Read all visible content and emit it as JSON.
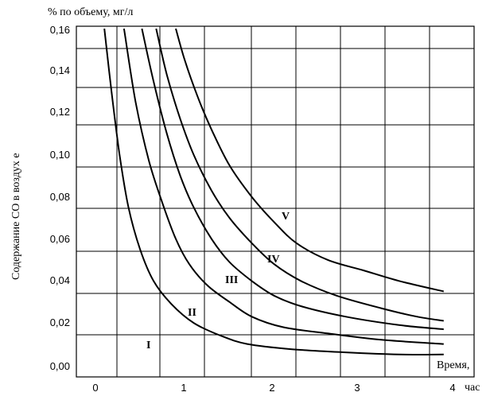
{
  "chart_data": {
    "type": "line",
    "ylabel_top": "% по объему,  мг/л",
    "ylabel_side": "Содержание СО в воздух е",
    "xlabel_word": "Время,",
    "xlabel_unit": "час",
    "x_ticks": [
      "0",
      "1",
      "2",
      "3",
      "4"
    ],
    "y_ticks": [
      "0,00",
      "0,02",
      "0,04",
      "0,06",
      "0,08",
      "0,10",
      "0,12",
      "0,14",
      "0,16"
    ],
    "xlim": [
      0,
      4
    ],
    "ylim": [
      0,
      0.16
    ],
    "grid": true,
    "series": [
      {
        "name": "I",
        "x": [
          0.1,
          0.18,
          0.27,
          0.37,
          0.5,
          0.65,
          0.85,
          1.1,
          1.4,
          1.7,
          2.2,
          2.8,
          3.4,
          3.9
        ],
        "y": [
          0.16,
          0.13,
          0.1,
          0.075,
          0.055,
          0.04,
          0.029,
          0.02,
          0.014,
          0.01,
          0.0075,
          0.006,
          0.005,
          0.005
        ]
      },
      {
        "name": "II",
        "x": [
          0.32,
          0.45,
          0.6,
          0.75,
          0.9,
          1.05,
          1.25,
          1.5,
          1.75,
          2.1,
          2.6,
          3.2,
          3.9
        ],
        "y": [
          0.16,
          0.125,
          0.097,
          0.077,
          0.06,
          0.048,
          0.038,
          0.03,
          0.023,
          0.018,
          0.015,
          0.012,
          0.01
        ]
      },
      {
        "name": "III",
        "x": [
          0.52,
          0.65,
          0.8,
          0.95,
          1.1,
          1.3,
          1.5,
          1.75,
          2.0,
          2.3,
          2.8,
          3.4,
          3.9
        ],
        "y": [
          0.16,
          0.135,
          0.11,
          0.09,
          0.075,
          0.06,
          0.049,
          0.04,
          0.033,
          0.028,
          0.023,
          0.019,
          0.017
        ]
      },
      {
        "name": "IV",
        "x": [
          0.68,
          0.8,
          0.95,
          1.1,
          1.3,
          1.5,
          1.75,
          2.0,
          2.3,
          2.7,
          3.2,
          3.6,
          3.9
        ],
        "y": [
          0.16,
          0.138,
          0.117,
          0.1,
          0.083,
          0.07,
          0.058,
          0.048,
          0.04,
          0.033,
          0.027,
          0.023,
          0.021
        ]
      },
      {
        "name": "V",
        "x": [
          0.9,
          1.0,
          1.15,
          1.3,
          1.5,
          1.75,
          2.0,
          2.25,
          2.6,
          3.0,
          3.4,
          3.9
        ],
        "y": [
          0.16,
          0.145,
          0.127,
          0.112,
          0.095,
          0.08,
          0.068,
          0.058,
          0.05,
          0.045,
          0.04,
          0.035
        ]
      }
    ]
  }
}
